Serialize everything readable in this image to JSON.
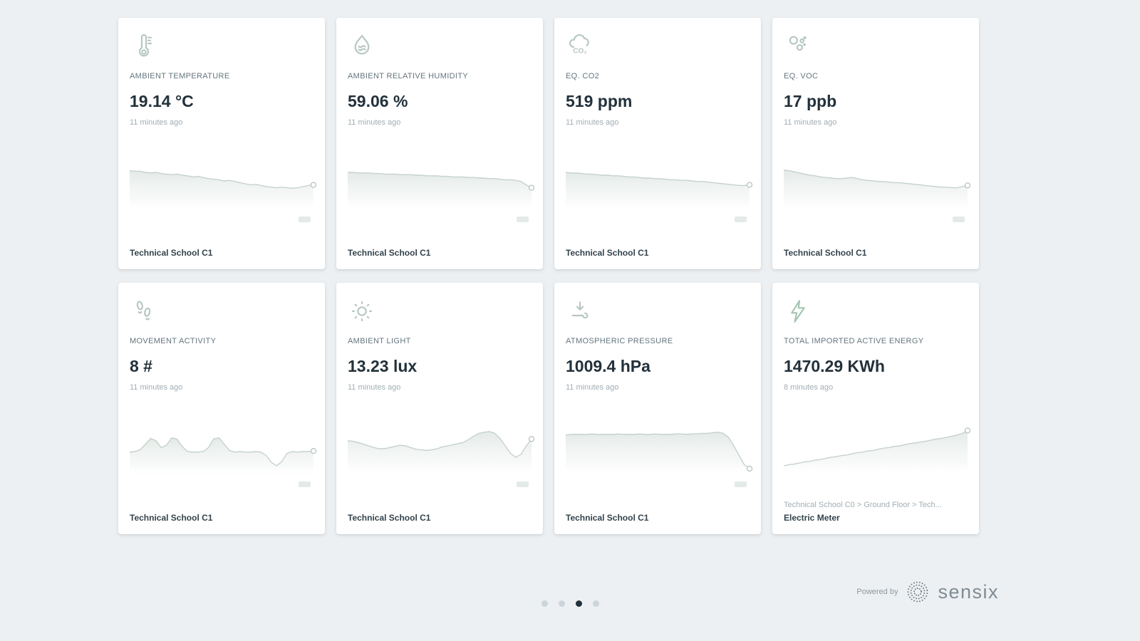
{
  "page": {
    "background": "#edf0f2"
  },
  "cards": [
    {
      "icon": "thermometer-icon",
      "label": "AMBIENT TEMPERATURE",
      "value": "19.14 °C",
      "timestamp": "11 minutes ago",
      "location": "Technical School C1",
      "sparkline": [
        27,
        28,
        28,
        30,
        31,
        30,
        32,
        33,
        34,
        33,
        35,
        36,
        38,
        37,
        39,
        41,
        42,
        43,
        45,
        44,
        46,
        48,
        50,
        52,
        51,
        53,
        55,
        56,
        57,
        56,
        57,
        58,
        57,
        55,
        53,
        52
      ]
    },
    {
      "icon": "humidity-drop-icon",
      "label": "AMBIENT RELATIVE HUMIDITY",
      "value": "59.06 %",
      "timestamp": "11 minutes ago",
      "location": "Technical School C1",
      "sparkline": [
        30,
        30,
        31,
        31,
        31,
        32,
        32,
        33,
        33,
        33,
        34,
        34,
        34,
        35,
        35,
        36,
        36,
        36,
        37,
        37,
        38,
        38,
        38,
        39,
        39,
        40,
        40,
        41,
        41,
        42,
        43,
        43,
        44,
        46,
        52,
        57
      ]
    },
    {
      "icon": "co2-cloud-icon",
      "label": "EQ. CO2",
      "value": "519 ppm",
      "timestamp": "11 minutes ago",
      "location": "Technical School C1",
      "sparkline": [
        30,
        31,
        31,
        32,
        33,
        33,
        34,
        35,
        35,
        36,
        36,
        37,
        38,
        38,
        39,
        40,
        40,
        41,
        41,
        42,
        43,
        43,
        44,
        44,
        45,
        46,
        46,
        47,
        48,
        49,
        50,
        51,
        52,
        53,
        53,
        52
      ]
    },
    {
      "icon": "voc-bubbles-icon",
      "label": "EQ. VOC",
      "value": "17 ppb",
      "timestamp": "11 minutes ago",
      "location": "Technical School C1",
      "sparkline": [
        26,
        27,
        29,
        31,
        33,
        35,
        36,
        38,
        39,
        40,
        41,
        41,
        40,
        39,
        41,
        43,
        44,
        45,
        46,
        46,
        47,
        48,
        48,
        49,
        50,
        51,
        52,
        53,
        54,
        55,
        56,
        56,
        57,
        57,
        55,
        53
      ]
    },
    {
      "icon": "footsteps-icon",
      "label": "MOVEMENT ACTIVITY",
      "value": "8 #",
      "timestamp": "11 minutes ago",
      "location": "Technical School C1",
      "sparkline": [
        56,
        55,
        52,
        42,
        32,
        36,
        48,
        44,
        31,
        33,
        46,
        55,
        56,
        56,
        55,
        48,
        33,
        31,
        42,
        53,
        56,
        55,
        56,
        56,
        55,
        56,
        62,
        74,
        80,
        72,
        58,
        55,
        56,
        55,
        55,
        54
      ]
    },
    {
      "icon": "sun-icon",
      "label": "AMBIENT LIGHT",
      "value": "13.23 lux",
      "timestamp": "11 minutes ago",
      "location": "Technical School C1",
      "sparkline": [
        36,
        37,
        39,
        42,
        45,
        48,
        50,
        50,
        48,
        46,
        44,
        45,
        48,
        51,
        52,
        53,
        52,
        50,
        47,
        45,
        43,
        41,
        39,
        34,
        28,
        23,
        21,
        20,
        23,
        32,
        45,
        58,
        65,
        60,
        45,
        33
      ]
    },
    {
      "icon": "pressure-icon",
      "label": "ATMOSPHERIC PRESSURE",
      "value": "1009.4 hPa",
      "timestamp": "11 minutes ago",
      "location": "Technical School C1",
      "sparkline": [
        26,
        25,
        25,
        25,
        25,
        24,
        25,
        25,
        25,
        25,
        24,
        25,
        25,
        25,
        24,
        25,
        25,
        24,
        25,
        25,
        25,
        24,
        24,
        25,
        24,
        24,
        23,
        23,
        22,
        21,
        23,
        30,
        45,
        62,
        78,
        85
      ]
    },
    {
      "icon": "lightning-icon",
      "label": "TOTAL IMPORTED ACTIVE ENERGY",
      "value": "1470.29 KWh",
      "timestamp": "8 minutes ago",
      "location_path": "Technical School C0 > Ground Floor > Tech...",
      "location": "Electric Meter",
      "sparkline": [
        80,
        78,
        77,
        75,
        73,
        72,
        70,
        69,
        67,
        65,
        64,
        62,
        61,
        59,
        57,
        56,
        54,
        53,
        51,
        49,
        48,
        46,
        45,
        43,
        41,
        40,
        38,
        37,
        35,
        33,
        32,
        30,
        28,
        26,
        23,
        18
      ]
    }
  ],
  "carousel": {
    "dot_count": 4,
    "active_index": 2
  },
  "branding": {
    "powered_by": "Powered by",
    "brand": "sensix"
  },
  "chart_style": {
    "stroke": "#c6d2cc",
    "fill_top": "#ccd8d2",
    "marker_stroke": "#b7c4bf",
    "marker_fill": "#ffffff"
  }
}
